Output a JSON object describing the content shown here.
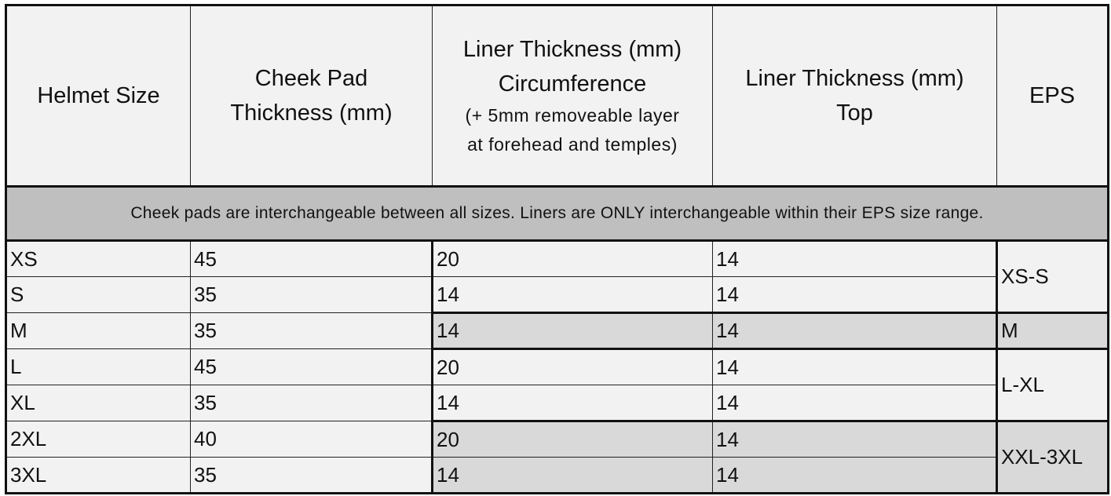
{
  "headers": {
    "helmet_size": "Helmet Size",
    "cheek_pad_line1": "Cheek Pad",
    "cheek_pad_line2": "Thickness (mm)",
    "liner_circ_line1": "Liner Thickness (mm)",
    "liner_circ_line2": "Circumference",
    "liner_circ_note1": "(+ 5mm removeable layer",
    "liner_circ_note2": "at forehead and temples)",
    "liner_top_line1": "Liner Thickness (mm)",
    "liner_top_line2": "Top",
    "eps": "EPS"
  },
  "banner": "Cheek pads are interchangeable between all sizes. Liners are ONLY interchangeable within their EPS size range.",
  "rows": [
    {
      "size": "XS",
      "cheek": "45",
      "circ": "20",
      "top": "14"
    },
    {
      "size": "S",
      "cheek": "35",
      "circ": "14",
      "top": "14"
    },
    {
      "size": "M",
      "cheek": "35",
      "circ": "14",
      "top": "14"
    },
    {
      "size": "L",
      "cheek": "45",
      "circ": "20",
      "top": "14"
    },
    {
      "size": "XL",
      "cheek": "35",
      "circ": "14",
      "top": "14"
    },
    {
      "size": "2XL",
      "cheek": "40",
      "circ": "20",
      "top": "14"
    },
    {
      "size": "3XL",
      "cheek": "35",
      "circ": "14",
      "top": "14"
    }
  ],
  "eps_groups": [
    "XS-S",
    "M",
    "L-XL",
    "XXL-3XL"
  ],
  "colors": {
    "header_bg": "#f2f2f2",
    "banner_bg": "#bfbfbf",
    "row_light": "#f2f2f2",
    "row_shaded": "#d9d9d9"
  }
}
